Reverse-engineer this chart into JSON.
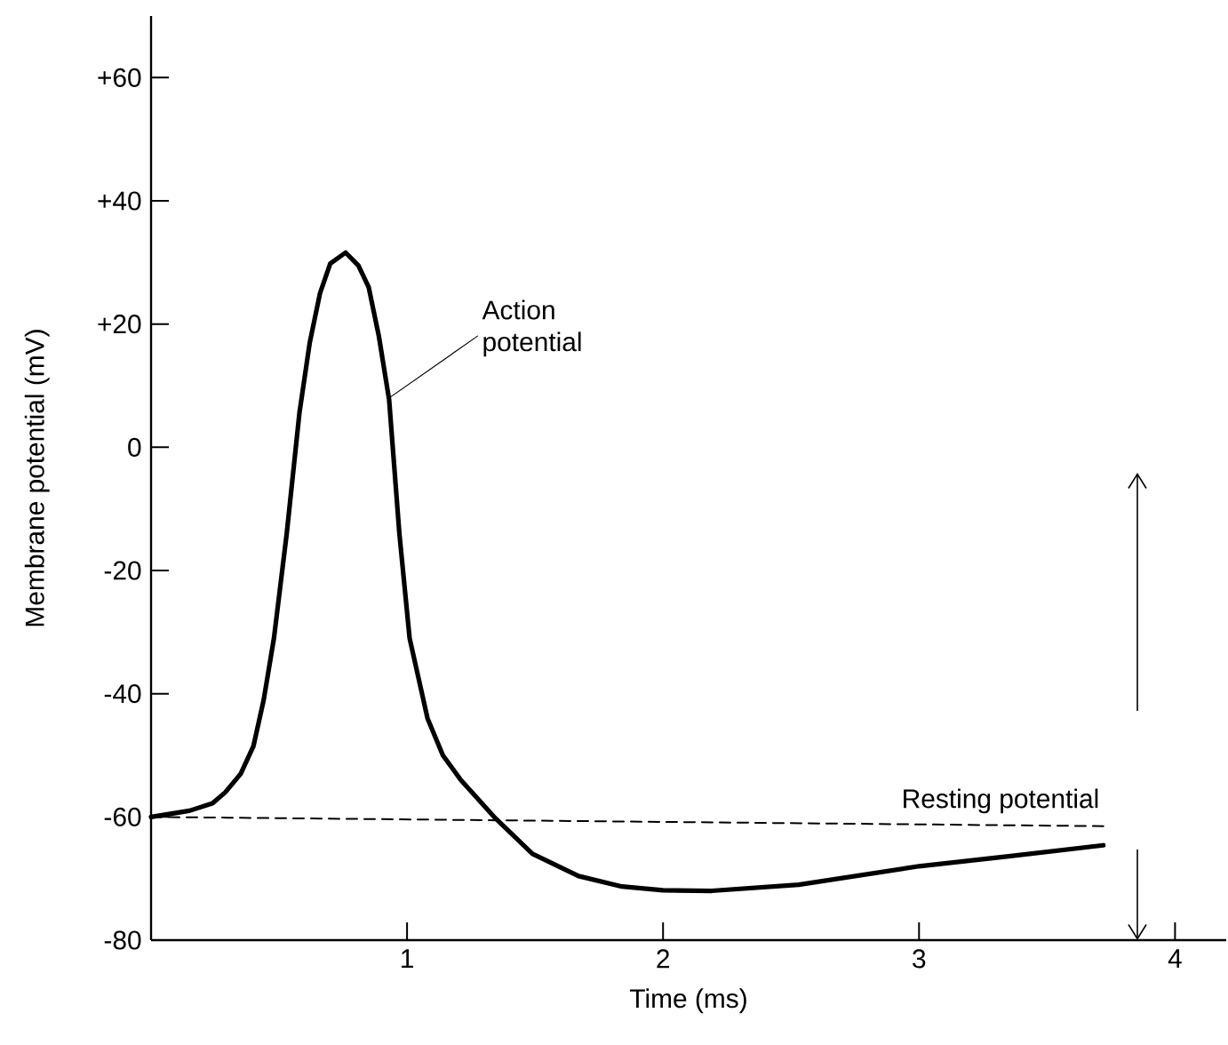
{
  "chart_data": {
    "type": "line",
    "xlabel": "Time (ms)",
    "ylabel": "Membrane potential (mV)",
    "xlim": [
      0,
      4.2
    ],
    "ylim": [
      -80,
      70
    ],
    "xticks": [
      1,
      2,
      3,
      4
    ],
    "yticks": [
      {
        "value": -80,
        "label": "-80"
      },
      {
        "value": -60,
        "label": "-60"
      },
      {
        "value": -40,
        "label": "-40"
      },
      {
        "value": -20,
        "label": "-20"
      },
      {
        "value": 0,
        "label": "0"
      },
      {
        "value": 20,
        "label": "+20"
      },
      {
        "value": 40,
        "label": "+40"
      },
      {
        "value": 60,
        "label": "+60"
      }
    ],
    "grid": false,
    "legend": false,
    "series": [
      {
        "color": "#000000",
        "line_style": "solid",
        "x": [
          0,
          0.15,
          0.24,
          0.29,
          0.35,
          0.4,
          0.44,
          0.48,
          0.53,
          0.58,
          0.62,
          0.66,
          0.7,
          0.76,
          0.81,
          0.85,
          0.89,
          0.93,
          0.97,
          1.01,
          1.08,
          1.14,
          1.21,
          1.34,
          1.49,
          1.67,
          1.84,
          2.0,
          2.19,
          2.53,
          3.0,
          3.35,
          3.72
        ],
        "values": [
          -60,
          -59,
          -57.8,
          -56,
          -53,
          -48.5,
          -41,
          -31,
          -14,
          5.7,
          17,
          25,
          29.8,
          31.6,
          29.5,
          26,
          18,
          7.7,
          -14,
          -31,
          -44,
          -50,
          -54,
          -60,
          -66,
          -69.6,
          -71.3,
          -71.9,
          -72,
          -71,
          -68,
          -66.4,
          -64.6
        ]
      },
      {
        "name": "Resting potential",
        "color": "#000000",
        "line_style": "dashed",
        "x": [
          0,
          3.72
        ],
        "values": [
          -60,
          -61.5
        ]
      }
    ],
    "annotations": [
      {
        "text": "Action potential",
        "x": 0.93,
        "y": 8
      }
    ]
  }
}
